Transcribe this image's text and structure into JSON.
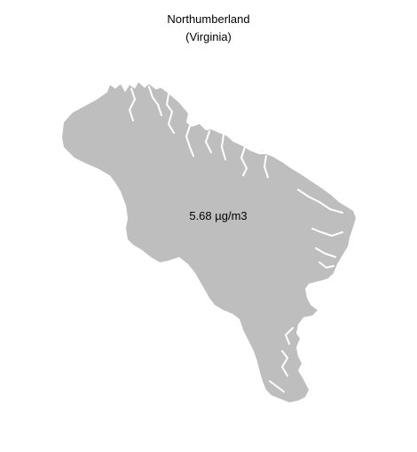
{
  "map": {
    "title": "Northumberland",
    "subtitle": "(Virginia)",
    "region_value_label": "5.68 µg/m3",
    "fill_color": "#bebebe",
    "water_color": "#ffffff",
    "text_color": "#000000"
  }
}
